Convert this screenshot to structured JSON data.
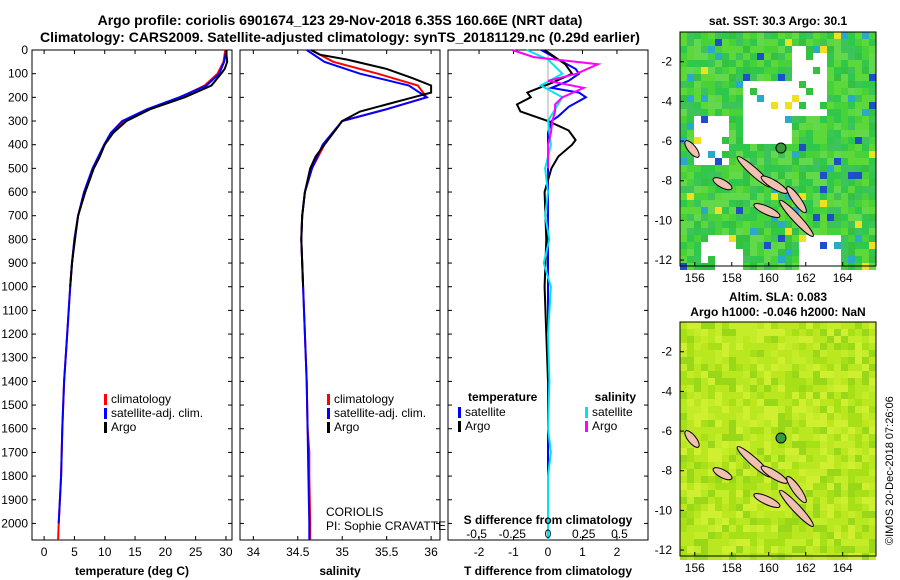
{
  "title": {
    "line1": "Argo profile: coriolis 6901674_123 29-Nov-2018 6.35S 160.66E (NRT data)",
    "line2": "Climatology: CARS2009. Satellite-adjusted climatology: synTS_20181129.nc (0.29d earlier)"
  },
  "chart_data": [
    {
      "type": "line",
      "name": "temperature",
      "xlabel": "temperature (deg C)",
      "xlim": [
        -2,
        31
      ],
      "xticks": [
        0,
        5,
        10,
        15,
        20,
        25,
        30
      ],
      "ylim": [
        0,
        2070
      ],
      "yticks": [
        0,
        100,
        200,
        300,
        400,
        500,
        600,
        700,
        800,
        900,
        1000,
        1100,
        1200,
        1300,
        1400,
        1500,
        1600,
        1700,
        1800,
        1900,
        2000
      ],
      "legend": [
        "climatology",
        "satellite-adj. clim.",
        "Argo"
      ],
      "series": [
        {
          "name": "climatology",
          "color": "#ff0000",
          "depth": [
            0,
            50,
            100,
            150,
            200,
            250,
            300,
            350,
            400,
            500,
            600,
            700,
            800,
            900,
            1000,
            1200,
            1400,
            1600,
            1800,
            2000,
            2070
          ],
          "values": [
            29.9,
            29.6,
            28.6,
            26.5,
            22.5,
            17.5,
            13.2,
            11.2,
            10.0,
            8.0,
            6.6,
            5.6,
            5.0,
            4.6,
            4.3,
            3.8,
            3.3,
            3.0,
            2.8,
            2.4,
            2.3
          ]
        },
        {
          "name": "satellite-adj. clim.",
          "color": "#0000ff",
          "depth": [
            0,
            50,
            100,
            150,
            200,
            250,
            300,
            350,
            400,
            500,
            600,
            700,
            800,
            900,
            1000,
            1200,
            1400,
            1600,
            1800,
            2000
          ],
          "values": [
            30.1,
            29.7,
            28.9,
            26.8,
            22.3,
            17.0,
            12.9,
            11.0,
            9.9,
            8.0,
            6.6,
            5.6,
            5.0,
            4.6,
            4.3,
            3.8,
            3.3,
            3.0,
            2.8,
            2.4
          ]
        },
        {
          "name": "Argo",
          "color": "#000000",
          "depth": [
            0,
            20,
            50,
            80,
            100,
            150,
            200,
            250,
            300,
            350,
            400,
            450,
            500,
            600,
            700,
            800,
            900,
            1000
          ],
          "values": [
            30.1,
            30.1,
            30.2,
            29.8,
            29.2,
            27.6,
            23.2,
            17.5,
            13.6,
            11.4,
            10.0,
            9.2,
            8.2,
            6.8,
            5.6,
            5.1,
            4.6,
            4.3
          ]
        }
      ]
    },
    {
      "type": "line",
      "name": "salinity",
      "xlabel": "salinity",
      "xlim": [
        33.85,
        36.1
      ],
      "xticks": [
        34,
        34.5,
        35,
        35.5,
        36
      ],
      "xticklabels": [
        "34",
        "34.5",
        "35",
        "35.5",
        "36"
      ],
      "ylim": [
        0,
        2070
      ],
      "legend": [
        "climatology",
        "satellite-adj. clim.",
        "Argo"
      ],
      "annotation": [
        "CORIOLIS",
        "PI: Sophie CRAVATTE"
      ],
      "series": [
        {
          "name": "climatology",
          "color": "#ff0000",
          "depth": [
            0,
            50,
            100,
            150,
            200,
            250,
            300,
            400,
            500,
            600,
            700,
            800,
            900,
            1000,
            1200,
            1400,
            1600,
            1700,
            1800,
            2000,
            2070
          ],
          "values": [
            34.65,
            34.9,
            35.4,
            35.85,
            35.95,
            35.5,
            35.0,
            34.8,
            34.66,
            34.58,
            34.55,
            34.54,
            34.55,
            34.56,
            34.58,
            34.6,
            34.61,
            34.63,
            34.63,
            34.64,
            34.64
          ]
        },
        {
          "name": "satellite-adj. clim.",
          "color": "#0000ff",
          "depth": [
            0,
            50,
            100,
            150,
            200,
            250,
            300,
            400,
            500,
            600,
            700,
            800,
            900,
            1000,
            1200,
            1400,
            1600,
            1800,
            2000,
            2070
          ],
          "values": [
            34.6,
            34.8,
            35.2,
            35.75,
            35.95,
            35.5,
            35.0,
            34.78,
            34.66,
            34.58,
            34.55,
            34.54,
            34.55,
            34.56,
            34.58,
            34.6,
            34.61,
            34.62,
            34.63,
            34.63
          ]
        },
        {
          "name": "Argo",
          "color": "#000000",
          "depth": [
            0,
            20,
            40,
            80,
            120,
            150,
            180,
            200,
            230,
            260,
            300,
            350,
            400,
            450,
            500,
            600,
            700,
            800,
            900,
            1000
          ],
          "values": [
            34.65,
            34.75,
            35.05,
            35.5,
            35.8,
            36.0,
            36.0,
            35.8,
            35.5,
            35.2,
            35.0,
            34.9,
            34.8,
            34.7,
            34.64,
            34.58,
            34.55,
            34.54,
            34.55,
            34.56
          ]
        }
      ]
    },
    {
      "type": "line",
      "name": "difference",
      "xlabel": "T difference from climatology",
      "xlim": [
        -2.9,
        2.9
      ],
      "xticks": [
        -2,
        -1,
        0,
        1,
        2
      ],
      "xticklabels": [
        "-2",
        "-1",
        "0",
        "1",
        "2"
      ],
      "top_axis_label": "S difference from climatology",
      "top_ticks": [
        -0.5,
        -0.25,
        0,
        0.25,
        0.5
      ],
      "top_ticklabels": [
        "-0.5",
        "-0.25",
        "0",
        "0.25",
        "0.5"
      ],
      "ylim": [
        0,
        2070
      ],
      "legend_left_title": "temperature",
      "legend_left": [
        "satellite",
        "Argo"
      ],
      "legend_right_title": "salinity",
      "legend_right": [
        "satellite",
        "Argo"
      ],
      "series": [
        {
          "name": "T satellite",
          "color": "#0000ff",
          "depth": [
            0,
            40,
            80,
            100,
            130,
            160,
            180,
            200,
            240,
            280,
            300,
            350,
            400,
            600,
            1000,
            1500,
            2000
          ],
          "values": [
            -0.2,
            0.3,
            0.8,
            0.9,
            0.6,
            0.1,
            0.9,
            1.1,
            0.6,
            0.3,
            0.1,
            0.0,
            0.0,
            0.0,
            0.0,
            0.0,
            0.0
          ]
        },
        {
          "name": "T Argo",
          "color": "#000000",
          "depth": [
            0,
            30,
            60,
            100,
            140,
            180,
            200,
            230,
            260,
            300,
            340,
            380,
            400,
            450,
            500,
            600,
            800,
            1000,
            1200,
            1400
          ],
          "values": [
            -0.1,
            0.2,
            0.5,
            0.7,
            0.1,
            -0.6,
            -0.5,
            -0.9,
            -0.8,
            0.0,
            0.6,
            0.8,
            0.7,
            0.3,
            0.1,
            -0.1,
            -0.05,
            -0.1,
            -0.05,
            0.0
          ]
        },
        {
          "name": "S satellite",
          "color": "#00e5ee",
          "depth": [
            0,
            40,
            100,
            150,
            200,
            250,
            300,
            400,
            500,
            600,
            700,
            800,
            900,
            1000,
            1200,
            1400,
            1600,
            1700,
            1800,
            2000,
            2070
          ],
          "values": [
            -0.15,
            0.0,
            0.1,
            -0.05,
            0.1,
            0.05,
            0.0,
            0.02,
            -0.02,
            0.0,
            -0.02,
            0.01,
            -0.03,
            0.02,
            0.0,
            0.01,
            0.0,
            0.02,
            0.0,
            0.0,
            0.0
          ]
        },
        {
          "name": "S Argo",
          "color": "#ff00ff",
          "depth": [
            0,
            30,
            60,
            100,
            130,
            160,
            200,
            230,
            260,
            300,
            350,
            400,
            450,
            500
          ],
          "values": [
            -0.25,
            -0.1,
            0.35,
            0.2,
            0.0,
            0.25,
            0.1,
            0.05,
            0.05,
            0.03,
            0.02,
            0.0,
            0.0,
            0.0
          ]
        }
      ]
    },
    {
      "type": "heatmap",
      "name": "sat-sst-map",
      "title": "sat. SST: 30.3 Argo: 30.1",
      "xticks": [
        156,
        158,
        160,
        162,
        164
      ],
      "yticks": [
        -2,
        -4,
        -6,
        -8,
        -10,
        -12
      ],
      "xlim": [
        155.2,
        165.8
      ],
      "ylim": [
        -12.3,
        -0.5
      ],
      "marker": {
        "lon": 160.66,
        "lat": -6.35
      }
    },
    {
      "type": "heatmap",
      "name": "sla-map",
      "title": "Altim. SLA: 0.083",
      "subtitle": "Argo h1000: -0.046 h2000: NaN",
      "xticks": [
        156,
        158,
        160,
        162,
        164
      ],
      "yticks": [
        -2,
        -4,
        -6,
        -8,
        -10,
        -12
      ],
      "xlim": [
        155.2,
        165.8
      ],
      "ylim": [
        -12.3,
        -0.5
      ],
      "marker": {
        "lon": 160.66,
        "lat": -6.35
      }
    }
  ],
  "credit": "©IMOS 20-Dec-2018 07:26:06"
}
